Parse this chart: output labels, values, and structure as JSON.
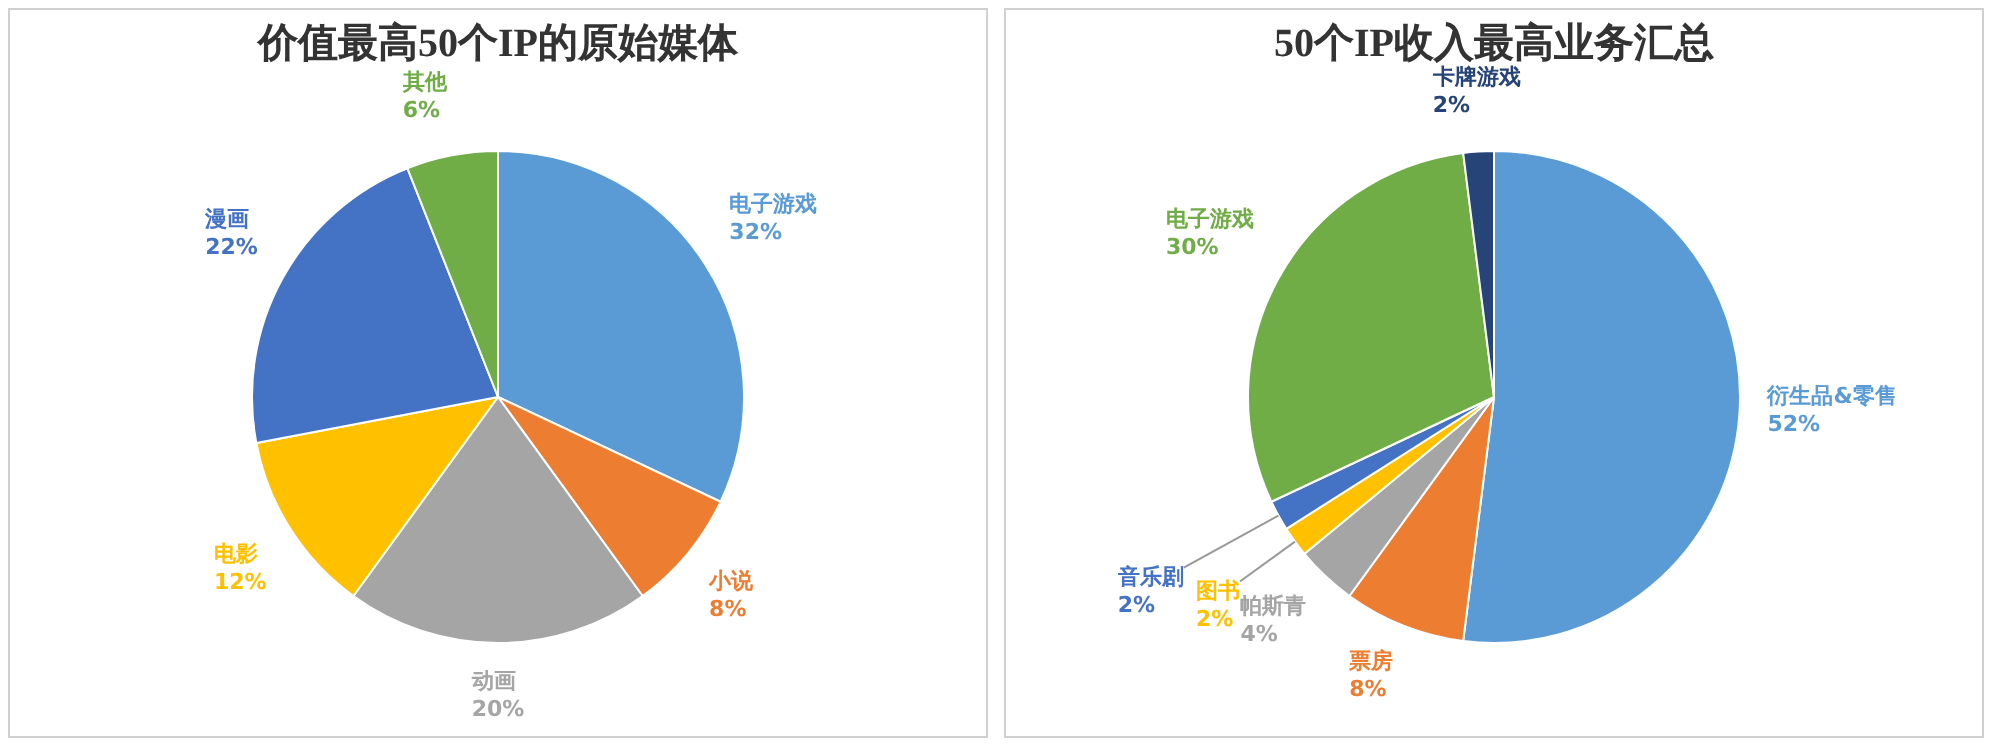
{
  "chart_data": [
    {
      "type": "pie",
      "title": "价值最高50个IP的原始媒体",
      "categories": [
        "电子游戏",
        "小说",
        "动画",
        "电影",
        "漫画",
        "其他"
      ],
      "values": [
        32,
        8,
        20,
        12,
        22,
        6
      ],
      "value_labels": [
        "32%",
        "8%",
        "20%",
        "12%",
        "22%",
        "6%"
      ],
      "colors": [
        "#5b9bd5",
        "#ed7d31",
        "#a5a5a5",
        "#ffc000",
        "#4472c4",
        "#70ad47"
      ]
    },
    {
      "type": "pie",
      "title": "50个IP收入最高业务汇总",
      "categories": [
        "衍生品&零售",
        "票房",
        "帕斯青",
        "图书",
        "音乐剧",
        "电子游戏",
        "卡牌游戏"
      ],
      "values": [
        52,
        8,
        4,
        2,
        2,
        30,
        2
      ],
      "value_labels": [
        "52%",
        "8%",
        "4%",
        "2%",
        "2%",
        "30%",
        "2%"
      ],
      "colors": [
        "#5b9bd5",
        "#ed7d31",
        "#a5a5a5",
        "#ffc000",
        "#4472c4",
        "#70ad47",
        "#264478"
      ]
    }
  ]
}
